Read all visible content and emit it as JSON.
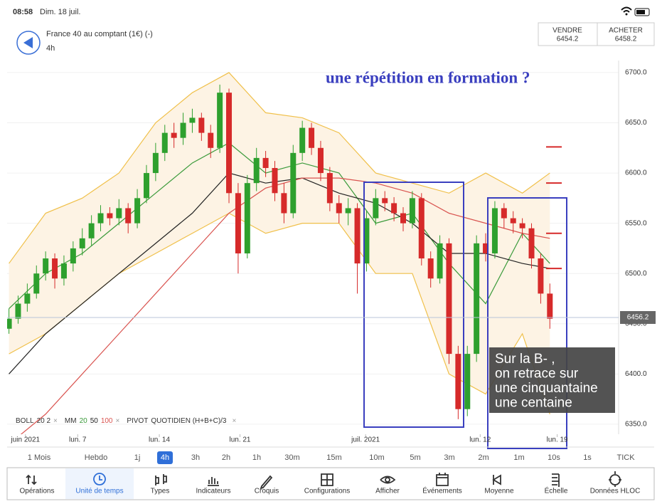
{
  "status_bar": {
    "time": "08:58",
    "date": "Dim. 18 juil."
  },
  "header": {
    "instrument": "France 40 au comptant (1€) (-)",
    "timeframe": "4h",
    "sell": {
      "label": "VENDRE",
      "price": "6454.2"
    },
    "buy": {
      "label": "ACHETER",
      "price": "6458.2"
    }
  },
  "chart": {
    "type": "candlestick",
    "ylim": [
      6340,
      6712
    ],
    "xlim": [
      -0.2,
      66.5
    ],
    "yticks": [
      {
        "value": 6350,
        "label": "6350.0"
      },
      {
        "value": 6400,
        "label": "6400.0"
      },
      {
        "value": 6450,
        "label": "6450.0"
      },
      {
        "value": 6500,
        "label": "6500.0"
      },
      {
        "value": 6550,
        "label": "6550.0"
      },
      {
        "value": 6600,
        "label": "6600.0"
      },
      {
        "value": 6650,
        "label": "6650.0"
      },
      {
        "value": 6700,
        "label": "6700.0"
      }
    ],
    "xticks": [
      {
        "value": 1.8,
        "label": "juin 2021"
      },
      {
        "value": 7.5,
        "label": "lun. 7"
      },
      {
        "value": 16.4,
        "label": "lun. 14"
      },
      {
        "value": 25.2,
        "label": "lun. 21"
      },
      {
        "value": 38.9,
        "label": "juil. 2021"
      },
      {
        "value": 51.4,
        "label": "lun. 12"
      },
      {
        "value": 59.8,
        "label": "lun. 19"
      }
    ],
    "up_color": "#2ea02e",
    "down_color": "#d62a2a",
    "candles": [
      [
        6445,
        6465,
        6440,
        6455
      ],
      [
        6455,
        6478,
        6450,
        6470
      ],
      [
        6470,
        6490,
        6462,
        6480
      ],
      [
        6480,
        6508,
        6475,
        6500
      ],
      [
        6500,
        6522,
        6493,
        6515
      ],
      [
        6515,
        6520,
        6485,
        6495
      ],
      [
        6495,
        6518,
        6488,
        6510
      ],
      [
        6510,
        6532,
        6502,
        6525
      ],
      [
        6525,
        6545,
        6518,
        6535
      ],
      [
        6535,
        6558,
        6528,
        6550
      ],
      [
        6550,
        6568,
        6542,
        6560
      ],
      [
        6560,
        6566,
        6548,
        6555
      ],
      [
        6555,
        6574,
        6548,
        6565
      ],
      [
        6565,
        6570,
        6540,
        6550
      ],
      [
        6550,
        6584,
        6545,
        6575
      ],
      [
        6575,
        6608,
        6570,
        6600
      ],
      [
        6600,
        6630,
        6592,
        6620
      ],
      [
        6620,
        6648,
        6612,
        6640
      ],
      [
        6640,
        6650,
        6625,
        6635
      ],
      [
        6635,
        6660,
        6628,
        6650
      ],
      [
        6650,
        6664,
        6640,
        6655
      ],
      [
        6655,
        6660,
        6632,
        6640
      ],
      [
        6640,
        6648,
        6615,
        6625
      ],
      [
        6625,
        6688,
        6620,
        6680
      ],
      [
        6680,
        6684,
        6570,
        6580
      ],
      [
        6580,
        6590,
        6500,
        6520
      ],
      [
        6520,
        6598,
        6515,
        6590
      ],
      [
        6590,
        6625,
        6582,
        6615
      ],
      [
        6615,
        6622,
        6596,
        6605
      ],
      [
        6605,
        6612,
        6572,
        6580
      ],
      [
        6580,
        6590,
        6550,
        6560
      ],
      [
        6560,
        6628,
        6555,
        6620
      ],
      [
        6620,
        6652,
        6612,
        6645
      ],
      [
        6645,
        6650,
        6618,
        6625
      ],
      [
        6625,
        6632,
        6592,
        6600
      ],
      [
        6600,
        6606,
        6562,
        6570
      ],
      [
        6570,
        6578,
        6550,
        6560
      ],
      [
        6560,
        6575,
        6548,
        6565
      ],
      [
        6565,
        6570,
        6480,
        6510
      ],
      [
        6510,
        6562,
        6502,
        6555
      ],
      [
        6555,
        6584,
        6548,
        6575
      ],
      [
        6575,
        6582,
        6562,
        6570
      ],
      [
        6570,
        6576,
        6552,
        6560
      ],
      [
        6560,
        6566,
        6542,
        6550
      ],
      [
        6550,
        6582,
        6545,
        6575
      ],
      [
        6575,
        6580,
        6508,
        6515
      ],
      [
        6515,
        6522,
        6486,
        6495
      ],
      [
        6495,
        6538,
        6490,
        6530
      ],
      [
        6530,
        6535,
        6410,
        6420
      ],
      [
        6420,
        6428,
        6355,
        6365
      ],
      [
        6365,
        6428,
        6358,
        6420
      ],
      [
        6420,
        6538,
        6412,
        6530
      ],
      [
        6530,
        6540,
        6512,
        6520
      ],
      [
        6520,
        6572,
        6515,
        6565
      ],
      [
        6565,
        6570,
        6545,
        6555
      ],
      [
        6555,
        6562,
        6540,
        6550
      ],
      [
        6550,
        6555,
        6535,
        6545
      ],
      [
        6545,
        6550,
        6505,
        6515
      ],
      [
        6515,
        6520,
        6470,
        6480
      ],
      [
        6480,
        6490,
        6445,
        6455
      ]
    ],
    "line_x": [
      0,
      4,
      8,
      12,
      16,
      20,
      24,
      28,
      32,
      36,
      40,
      44,
      48,
      52,
      56,
      59
    ],
    "bollinger": {
      "color": "#f0c04a",
      "fill": "#fdf3e4",
      "upper": [
        6510,
        6560,
        6575,
        6600,
        6650,
        6680,
        6700,
        6660,
        6655,
        6640,
        6600,
        6590,
        6580,
        6600,
        6580,
        6600
      ],
      "lower": [
        6420,
        6440,
        6470,
        6500,
        6520,
        6540,
        6560,
        6540,
        6550,
        6550,
        6500,
        6500,
        6400,
        6380,
        6440,
        6360
      ]
    },
    "moving_averages": [
      {
        "period": "20",
        "color": "#3a9a3a",
        "values": [
          6465,
          6500,
          6520,
          6550,
          6580,
          6610,
          6630,
          6600,
          6610,
          6600,
          6550,
          6560,
          6510,
          6470,
          6540,
          6510
        ]
      },
      {
        "period": "50",
        "color": "#222222",
        "values": [
          6400,
          6440,
          6470,
          6500,
          6530,
          6560,
          6600,
          6590,
          6595,
          6580,
          6570,
          6550,
          6520,
          6520,
          6510,
          6505
        ]
      },
      {
        "period": "100",
        "color": "#d9534f",
        "values": [
          6330,
          6360,
          6400,
          6440,
          6480,
          6520,
          6560,
          6585,
          6595,
          6595,
          6590,
          6580,
          6560,
          6550,
          6540,
          6535
        ]
      }
    ],
    "pivot_levels": [
      6626,
      6590,
      6540,
      6505
    ],
    "current_price": 6456.2,
    "annotation": "une répétition en formation ?",
    "note_lines": [
      "Sur la B- ,",
      "on retrace sur",
      "une cinquantaine",
      "une centaine"
    ],
    "close_icon": "×",
    "indicators": {
      "boll": {
        "name": "BOLL",
        "params": "20 2"
      },
      "mm": {
        "name": "MM"
      },
      "pivot": {
        "name": "PIVOT",
        "params": "QUOTIDIEN (H+B+C)/3"
      }
    }
  },
  "timeframes": {
    "items": [
      "1 Mois",
      "Hebdo",
      "1j",
      "4h",
      "3h",
      "2h",
      "1h",
      "30m",
      "15m",
      "10m",
      "5m",
      "3m",
      "2m",
      "1m",
      "10s",
      "1s",
      "TICK"
    ],
    "selected": 3
  },
  "toolbar": {
    "items": [
      "Opérations",
      "Unité de temps",
      "Types",
      "Indicateurs",
      "Croquis",
      "Configurations",
      "Afficher",
      "Événements",
      "Moyenne",
      "Échelle",
      "Données HLOC"
    ],
    "selected": 1
  }
}
